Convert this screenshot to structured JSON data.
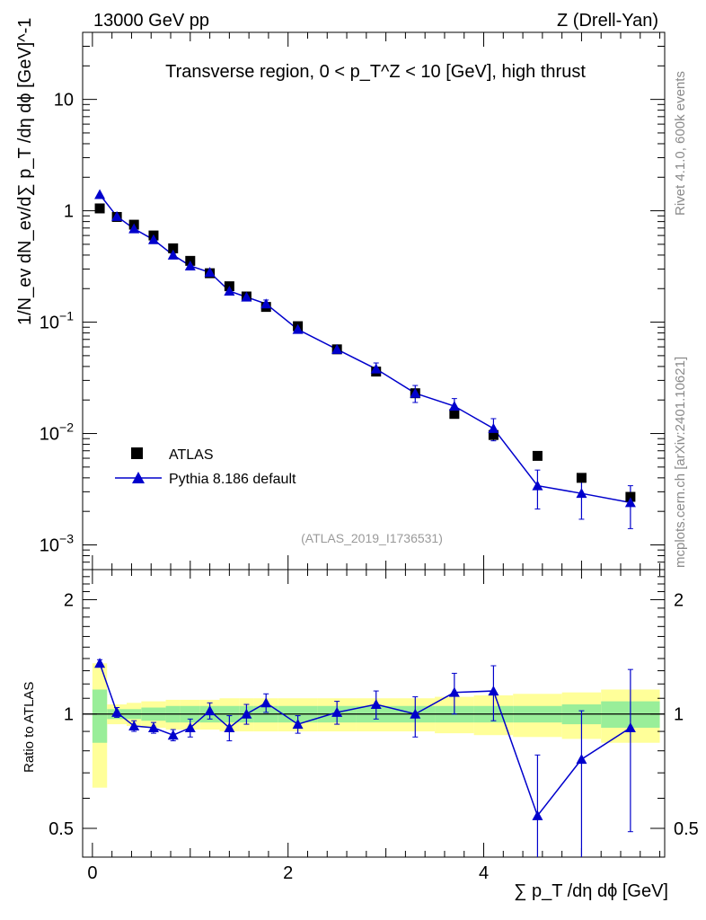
{
  "header": {
    "left": "13000 GeV pp",
    "right": "Z (Drell-Yan)"
  },
  "side": {
    "rivet": "Rivet 4.1.0,  600k events",
    "source": "mcplots.cern.ch [arXiv:2401.10621]"
  },
  "chart_data": {
    "type": "scatter",
    "title": "Transverse region, 0 < p_T^Z < 10 [GeV], high thrust",
    "analysis_label": "(ATLAS_2019_I1736531)",
    "xlabel": "∑ p_T /dη dϕ [GeV]",
    "ylabel": "1/N_ev dN_ev/d∑ p_T /dη dϕ [GeV]^-1",
    "ratio_ylabel": "Ratio to ATLAS",
    "xlim": [
      -0.1,
      5.85
    ],
    "ylim": [
      0.0006,
      40
    ],
    "yscale": "log",
    "ratio_ylim": [
      0.42,
      2.4
    ],
    "x_ticks": [
      "0",
      "2",
      "4"
    ],
    "y_ticks": [
      "10^-3",
      "10^-2",
      "10^-1",
      "1",
      "10"
    ],
    "ratio_ticks": [
      "0.5",
      "1",
      "2"
    ],
    "legend": [
      "ATLAS",
      "Pythia 8.186 default"
    ],
    "legend_position": "lower-left",
    "x": [
      0.075,
      0.25,
      0.425,
      0.625,
      0.825,
      1.0,
      1.2,
      1.4,
      1.575,
      1.775,
      2.1,
      2.5,
      2.9,
      3.3,
      3.7,
      4.1,
      4.55,
      5.0,
      5.5
    ],
    "series": [
      {
        "name": "ATLAS",
        "values": [
          1.05,
          0.88,
          0.75,
          0.6,
          0.46,
          0.355,
          0.275,
          0.21,
          0.17,
          0.137,
          0.092,
          0.057,
          0.036,
          0.023,
          0.015,
          0.0097,
          0.0063,
          0.004,
          0.0027
        ]
      },
      {
        "name": "Pythia 8.186 default",
        "values": [
          1.4,
          0.89,
          0.69,
          0.55,
          0.4,
          0.32,
          0.28,
          0.19,
          0.168,
          0.146,
          0.086,
          0.057,
          0.038,
          0.023,
          0.0176,
          0.0111,
          0.0034,
          0.0029,
          0.0024
        ],
        "errors": [
          0.05,
          0.02,
          0.02,
          0.02,
          0.015,
          0.012,
          0.012,
          0.01,
          0.01,
          0.012,
          0.005,
          0.004,
          0.005,
          0.004,
          0.003,
          0.0025,
          0.0013,
          0.0012,
          0.001
        ]
      }
    ],
    "ratio": {
      "values": [
        1.36,
        1.01,
        0.93,
        0.92,
        0.88,
        0.92,
        1.02,
        0.92,
        1.0,
        1.07,
        0.94,
        1.01,
        1.06,
        1.0,
        1.14,
        1.15,
        0.54,
        0.76,
        0.92
      ],
      "err_up": [
        0.03,
        0.03,
        0.03,
        0.03,
        0.03,
        0.05,
        0.05,
        0.07,
        0.06,
        0.06,
        0.05,
        0.07,
        0.09,
        0.11,
        0.14,
        0.19,
        0.24,
        0.26,
        0.39
      ],
      "err_down": [
        0.03,
        0.03,
        0.03,
        0.03,
        0.03,
        0.05,
        0.05,
        0.07,
        0.06,
        0.06,
        0.05,
        0.07,
        0.09,
        0.13,
        0.14,
        0.19,
        0.24,
        0.38,
        0.43
      ],
      "band_edges": [
        0.0,
        0.15,
        0.35,
        0.5,
        0.75,
        0.9,
        1.1,
        1.3,
        1.5,
        1.65,
        1.9,
        2.3,
        2.7,
        3.1,
        3.5,
        3.9,
        4.3,
        4.8,
        5.2,
        5.8
      ],
      "stat_band": [
        0.16,
        0.03,
        0.03,
        0.04,
        0.05,
        0.05,
        0.05,
        0.05,
        0.05,
        0.05,
        0.05,
        0.05,
        0.05,
        0.05,
        0.05,
        0.05,
        0.05,
        0.06,
        0.08
      ],
      "syst_band": [
        0.36,
        0.06,
        0.07,
        0.08,
        0.09,
        0.09,
        0.09,
        0.1,
        0.1,
        0.1,
        0.1,
        0.1,
        0.1,
        0.1,
        0.11,
        0.12,
        0.13,
        0.14,
        0.16
      ]
    },
    "colors": {
      "data": "#000000",
      "mc": "#0000cc",
      "stat": "#99ee99",
      "syst": "#ffff99"
    }
  }
}
